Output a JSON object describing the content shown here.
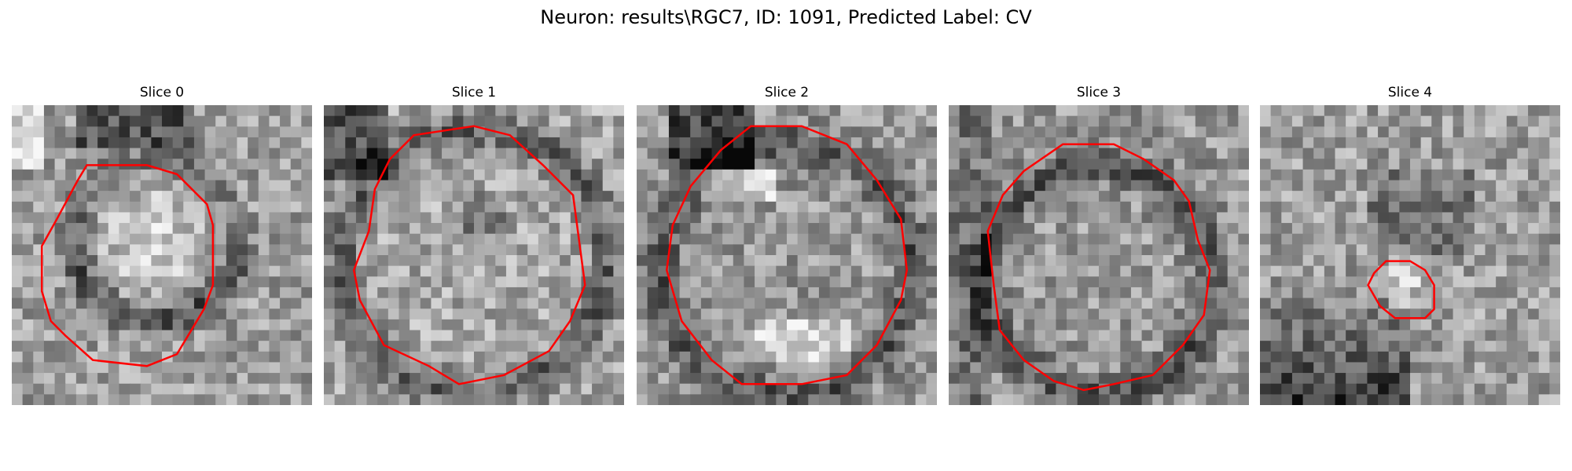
{
  "figure": {
    "title": "Neuron: results\\RGC7, ID: 1091, Predicted Label: CV",
    "contour_color": "#ff0000"
  },
  "slices": [
    {
      "title": "Slice 0"
    },
    {
      "title": "Slice 1"
    },
    {
      "title": "Slice 2"
    },
    {
      "title": "Slice 3"
    },
    {
      "title": "Slice 4"
    }
  ]
}
